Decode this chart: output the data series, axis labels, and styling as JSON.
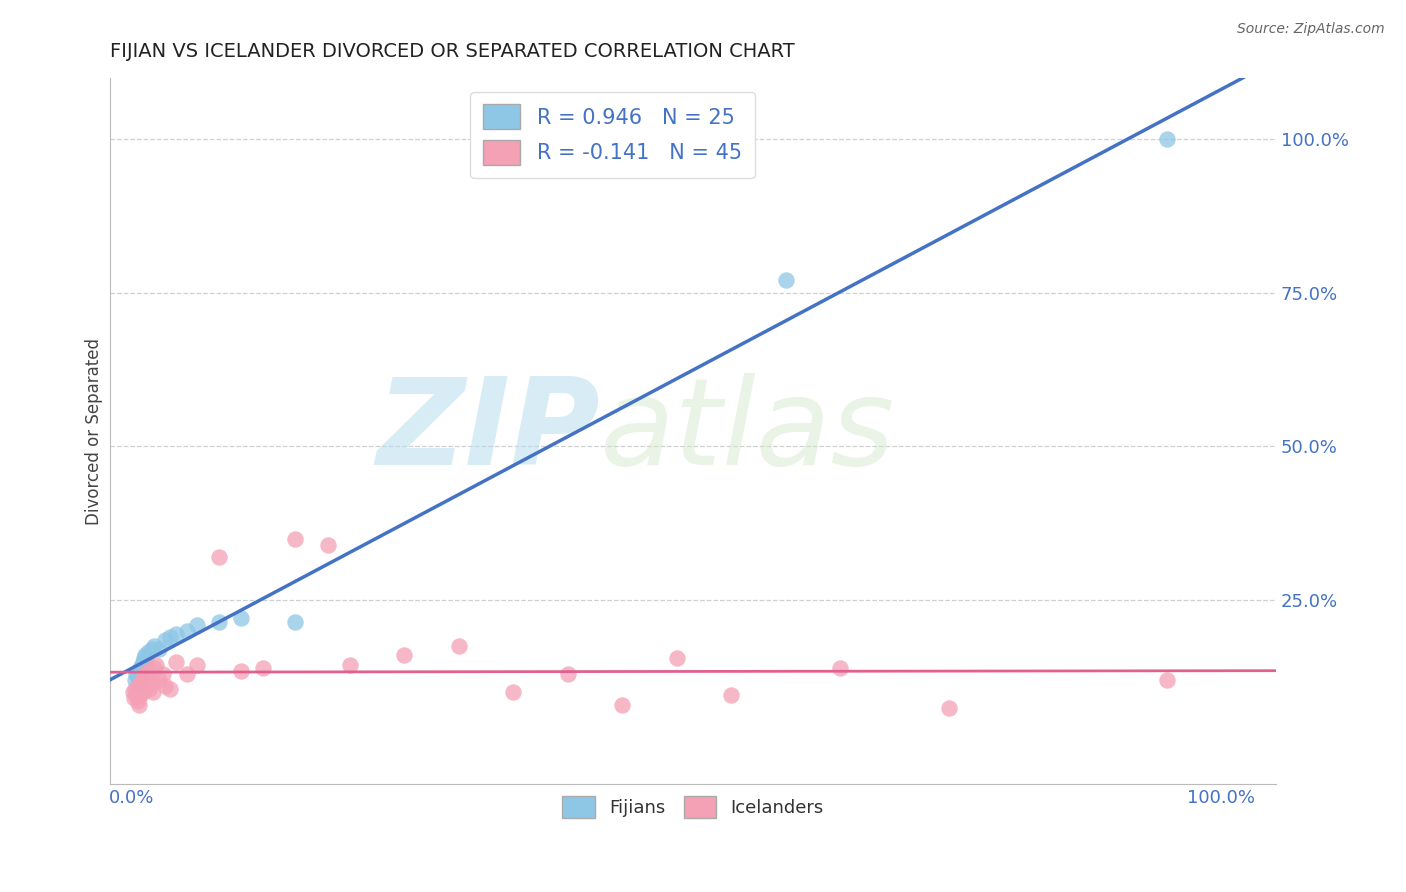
{
  "title": "FIJIAN VS ICELANDER DIVORCED OR SEPARATED CORRELATION CHART",
  "source_text": "Source: ZipAtlas.com",
  "ylabel": "Divorced or Separated",
  "watermark_zip": "ZIP",
  "watermark_atlas": "atlas",
  "xlim": [
    -0.02,
    1.05
  ],
  "ylim": [
    -0.05,
    1.1
  ],
  "x_ticks": [
    0.0,
    1.0
  ],
  "x_tick_labels": [
    "0.0%",
    "100.0%"
  ],
  "y_ticks": [
    0.25,
    0.5,
    0.75,
    1.0
  ],
  "y_tick_labels": [
    "25.0%",
    "50.0%",
    "75.0%",
    "100.0%"
  ],
  "fijians_color": "#8ec6e6",
  "icelanders_color": "#f4a0b5",
  "fijians_line_color": "#4472c4",
  "icelanders_line_color": "#e06090",
  "R_fijians": 0.946,
  "N_fijians": 25,
  "R_icelanders": -0.141,
  "N_icelanders": 45,
  "background_color": "#ffffff",
  "grid_color": "#d0d0d0",
  "title_color": "#222222",
  "axis_label_color": "#4472c4",
  "fijians_x": [
    0.003,
    0.004,
    0.005,
    0.006,
    0.007,
    0.008,
    0.009,
    0.01,
    0.011,
    0.012,
    0.013,
    0.015,
    0.018,
    0.02,
    0.025,
    0.03,
    0.035,
    0.04,
    0.05,
    0.06,
    0.08,
    0.1,
    0.15,
    0.6,
    0.95
  ],
  "fijians_y": [
    0.12,
    0.13,
    0.125,
    0.115,
    0.14,
    0.135,
    0.145,
    0.15,
    0.155,
    0.16,
    0.155,
    0.165,
    0.17,
    0.175,
    0.17,
    0.185,
    0.19,
    0.195,
    0.2,
    0.21,
    0.215,
    0.22,
    0.215,
    0.77,
    1.0
  ],
  "icelanders_x": [
    0.001,
    0.002,
    0.003,
    0.004,
    0.005,
    0.005,
    0.006,
    0.007,
    0.008,
    0.009,
    0.01,
    0.011,
    0.012,
    0.013,
    0.014,
    0.015,
    0.016,
    0.017,
    0.018,
    0.019,
    0.02,
    0.022,
    0.025,
    0.028,
    0.03,
    0.035,
    0.04,
    0.05,
    0.06,
    0.08,
    0.1,
    0.12,
    0.15,
    0.18,
    0.2,
    0.25,
    0.3,
    0.35,
    0.4,
    0.45,
    0.5,
    0.55,
    0.65,
    0.75,
    0.95
  ],
  "icelanders_y": [
    0.1,
    0.09,
    0.105,
    0.095,
    0.085,
    0.11,
    0.08,
    0.095,
    0.115,
    0.12,
    0.1,
    0.125,
    0.13,
    0.11,
    0.115,
    0.135,
    0.105,
    0.12,
    0.115,
    0.1,
    0.14,
    0.145,
    0.12,
    0.13,
    0.11,
    0.105,
    0.15,
    0.13,
    0.145,
    0.32,
    0.135,
    0.14,
    0.35,
    0.34,
    0.145,
    0.16,
    0.175,
    0.1,
    0.13,
    0.08,
    0.155,
    0.095,
    0.14,
    0.075,
    0.12
  ]
}
